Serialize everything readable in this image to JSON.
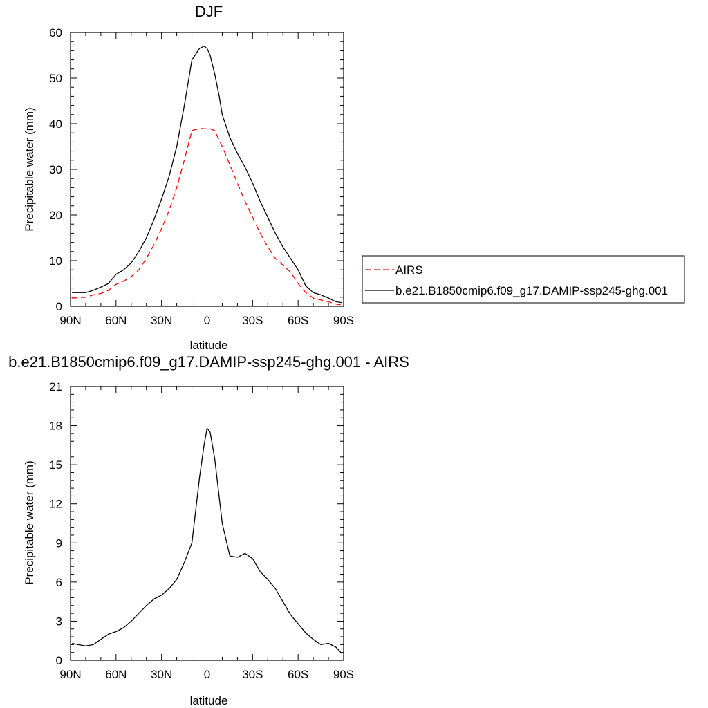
{
  "chart_data": [
    {
      "type": "line",
      "title": "DJF",
      "xlabel": "latitude",
      "ylabel": "Precipitable water (mm)",
      "xlim": [
        90,
        -90
      ],
      "ylim": [
        0,
        60
      ],
      "xticks": [
        90,
        60,
        30,
        0,
        -30,
        -60,
        -90
      ],
      "xtick_labels": [
        "90N",
        "60N",
        "30N",
        "0",
        "30S",
        "60S",
        "90S"
      ],
      "yticks": [
        0,
        10,
        20,
        30,
        40,
        50,
        60
      ],
      "ytick_labels": [
        "0",
        "10",
        "20",
        "30",
        "40",
        "50",
        "60"
      ],
      "grid": false,
      "legend_position": "right",
      "series": [
        {
          "name": "AIRS",
          "color": "#ff0000",
          "dash": "dashed",
          "x": [
            89,
            80,
            75,
            70,
            65,
            60,
            55,
            50,
            45,
            40,
            35,
            30,
            25,
            20,
            15,
            10,
            5,
            2,
            0,
            -2,
            -5,
            -10,
            -15,
            -20,
            -25,
            -30,
            -35,
            -40,
            -45,
            -50,
            -55,
            -60,
            -65,
            -70,
            -75,
            -80,
            -85,
            -89
          ],
          "y": [
            1.8,
            2.0,
            2.5,
            2.8,
            3.5,
            4.8,
            5.5,
            6.5,
            8.0,
            10.5,
            13.5,
            17.0,
            21.0,
            26.0,
            32.0,
            38.5,
            39.0,
            38.9,
            38.9,
            38.9,
            38.5,
            35.0,
            31.0,
            27.0,
            23.0,
            19.5,
            16.0,
            13.0,
            10.5,
            9.0,
            7.5,
            5.0,
            3.0,
            1.8,
            1.4,
            1.0,
            0.5,
            0.3
          ]
        },
        {
          "name": "b.e21.B1850cmip6.f09_g17.DAMIP-ssp245-ghg.001",
          "color": "#000000",
          "dash": "solid",
          "x": [
            89,
            80,
            75,
            70,
            65,
            60,
            55,
            50,
            45,
            40,
            35,
            30,
            25,
            20,
            15,
            10,
            5,
            2,
            0,
            -2,
            -5,
            -8,
            -10,
            -15,
            -20,
            -25,
            -30,
            -35,
            -40,
            -45,
            -50,
            -55,
            -60,
            -65,
            -70,
            -75,
            -80,
            -85,
            -89
          ],
          "y": [
            3.0,
            3.0,
            3.5,
            4.2,
            5.0,
            7.0,
            8.0,
            9.5,
            12.0,
            15.0,
            19.0,
            23.5,
            28.5,
            35.0,
            44.0,
            54.0,
            56.5,
            57.0,
            56.5,
            55.0,
            51.0,
            46.0,
            42.0,
            37.0,
            33.5,
            30.5,
            27.0,
            23.0,
            19.5,
            16.0,
            13.0,
            10.5,
            8.0,
            4.5,
            3.0,
            2.5,
            1.8,
            1.0,
            0.8
          ]
        }
      ]
    },
    {
      "type": "line",
      "title": "b.e21.B1850cmip6.f09_g17.DAMIP-ssp245-ghg.001 - AIRS",
      "xlabel": "latitude",
      "ylabel": "Precipitable water (mm)",
      "xlim": [
        90,
        -90
      ],
      "ylim": [
        0,
        21
      ],
      "xticks": [
        90,
        60,
        30,
        0,
        -30,
        -60,
        -90
      ],
      "xtick_labels": [
        "90N",
        "60N",
        "30N",
        "0",
        "30S",
        "60S",
        "90S"
      ],
      "yticks": [
        0,
        3,
        6,
        9,
        12,
        15,
        18,
        21
      ],
      "ytick_labels": [
        "0",
        "3",
        "6",
        "9",
        "12",
        "15",
        "18",
        "21"
      ],
      "grid": false,
      "series": [
        {
          "color": "#000000",
          "dash": "solid",
          "x": [
            89,
            85,
            80,
            75,
            70,
            65,
            60,
            55,
            50,
            45,
            40,
            35,
            30,
            25,
            20,
            15,
            10,
            5,
            2,
            0,
            -2,
            -5,
            -8,
            -10,
            -15,
            -20,
            -25,
            -30,
            -35,
            -40,
            -45,
            -50,
            -55,
            -60,
            -65,
            -70,
            -75,
            -80,
            -85,
            -89
          ],
          "y": [
            1.3,
            1.2,
            1.1,
            1.2,
            1.6,
            2.0,
            2.2,
            2.5,
            3.0,
            3.6,
            4.2,
            4.7,
            5.0,
            5.5,
            6.2,
            7.5,
            9.0,
            14.0,
            16.5,
            17.8,
            17.5,
            15.5,
            12.5,
            10.5,
            8.0,
            7.9,
            8.2,
            7.8,
            6.8,
            6.2,
            5.5,
            4.5,
            3.5,
            2.8,
            2.1,
            1.6,
            1.2,
            1.3,
            1.0,
            0.5
          ]
        }
      ]
    }
  ]
}
